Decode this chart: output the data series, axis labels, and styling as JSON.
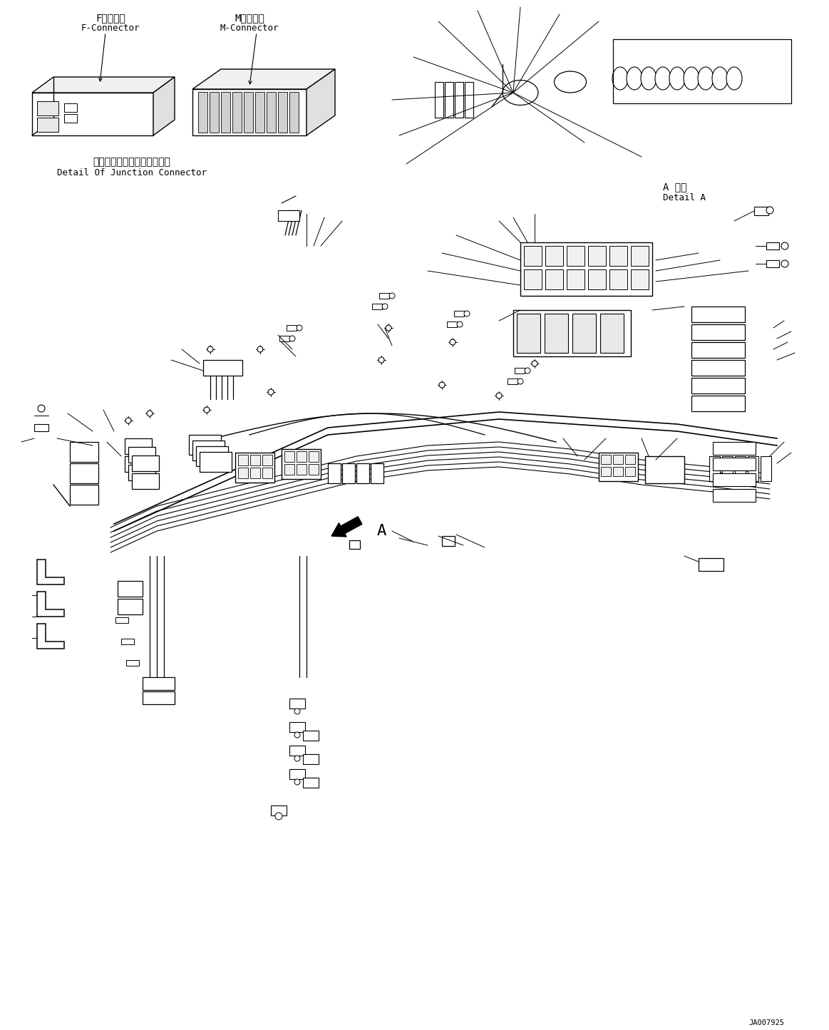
{
  "bg_color": "#ffffff",
  "fig_width": 11.63,
  "fig_height": 14.45,
  "dpi": 100,
  "watermark": "JA007925",
  "label_f_connector_jp": "Fコネクタ",
  "label_f_connector_en": "F-Connector",
  "label_m_connector_jp": "Mコネクタ",
  "label_m_connector_en": "M-Connector",
  "label_junction_jp": "ジャンクションコネクタ詳細",
  "label_junction_en": "Detail Of Junction Connector",
  "label_detail_a_jp": "A 詳細",
  "label_detail_a_en": "Detail A",
  "label_a": "A",
  "line_color": "#000000",
  "line_width": 1.0,
  "font_jp": 10,
  "font_en": 9
}
